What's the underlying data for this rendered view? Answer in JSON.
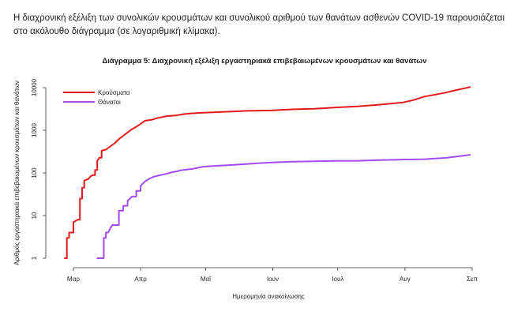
{
  "intro_text": "Η διαχρονική εξέλιξη των συνολικών κρουσμάτων και συνολικού αριθμού των θανάτων ασθενών COVID-19 παρουσιάζεται στο ακόλουθο διάγραμμα (σε λογαριθμική κλίμακα).",
  "chart_data": {
    "type": "line",
    "title": "Διάγραμμα 5: Διαχρονική εξέλιξη εργαστηριακά επιβεβαιωμένων κρουσμάτων και θανάτων",
    "xlabel": "Ημερομηνία ανακοίνωσης",
    "ylabel": "Αριθμός εργαστηριακά επιβεβαιωμένων κρουσμάτων και θανάτων",
    "y_scale": "log",
    "ylim": [
      1,
      10000
    ],
    "y_ticks": [
      1,
      10,
      100,
      1000,
      10000
    ],
    "y_tick_labels": [
      "1",
      "10",
      "100",
      "1000",
      "10000"
    ],
    "xlim": [
      "2020-02-26",
      "2020-09-01"
    ],
    "x_ticks": [
      "2020-03-01",
      "2020-04-01",
      "2020-05-01",
      "2020-06-01",
      "2020-07-01",
      "2020-08-01",
      "2020-09-01"
    ],
    "x_tick_labels": [
      "Μαρ",
      "Απρ",
      "Μαΐ",
      "Ιουν",
      "Ιουλ",
      "Αυγ",
      "Σεπ"
    ],
    "legend_position": "top-left",
    "grid": false,
    "series": [
      {
        "name": "Κρούσματα",
        "color": "#e31a1c",
        "points": [
          [
            "2020-02-26",
            1
          ],
          [
            "2020-02-27",
            3
          ],
          [
            "2020-02-28",
            4
          ],
          [
            "2020-03-01",
            7
          ],
          [
            "2020-03-03",
            8
          ],
          [
            "2020-03-04",
            25
          ],
          [
            "2020-03-05",
            45
          ],
          [
            "2020-03-06",
            66
          ],
          [
            "2020-03-08",
            73
          ],
          [
            "2020-03-09",
            84
          ],
          [
            "2020-03-10",
            89
          ],
          [
            "2020-03-11",
            117
          ],
          [
            "2020-03-12",
            190
          ],
          [
            "2020-03-13",
            228
          ],
          [
            "2020-03-14",
            331
          ],
          [
            "2020-03-16",
            352
          ],
          [
            "2020-03-18",
            418
          ],
          [
            "2020-03-20",
            495
          ],
          [
            "2020-03-22",
            624
          ],
          [
            "2020-03-24",
            743
          ],
          [
            "2020-03-26",
            892
          ],
          [
            "2020-03-28",
            1061
          ],
          [
            "2020-03-30",
            1212
          ],
          [
            "2020-04-01",
            1415
          ],
          [
            "2020-04-03",
            1673
          ],
          [
            "2020-04-06",
            1755
          ],
          [
            "2020-04-09",
            1955
          ],
          [
            "2020-04-13",
            2145
          ],
          [
            "2020-04-17",
            2224
          ],
          [
            "2020-04-21",
            2401
          ],
          [
            "2020-04-25",
            2506
          ],
          [
            "2020-04-30",
            2591
          ],
          [
            "2020-05-10",
            2710
          ],
          [
            "2020-05-20",
            2850
          ],
          [
            "2020-05-31",
            2917
          ],
          [
            "2020-06-10",
            3089
          ],
          [
            "2020-06-20",
            3203
          ],
          [
            "2020-06-30",
            3432
          ],
          [
            "2020-07-10",
            3622
          ],
          [
            "2020-07-20",
            3983
          ],
          [
            "2020-07-31",
            4477
          ],
          [
            "2020-08-05",
            5123
          ],
          [
            "2020-08-10",
            6177
          ],
          [
            "2020-08-15",
            6858
          ],
          [
            "2020-08-20",
            7684
          ],
          [
            "2020-08-25",
            8819
          ],
          [
            "2020-08-31",
            10317
          ]
        ]
      },
      {
        "name": "Θάνατοι",
        "color": "#a24cf2",
        "points": [
          [
            "2020-03-12",
            1
          ],
          [
            "2020-03-14",
            1
          ],
          [
            "2020-03-15",
            3
          ],
          [
            "2020-03-16",
            4
          ],
          [
            "2020-03-17",
            4
          ],
          [
            "2020-03-18",
            5
          ],
          [
            "2020-03-19",
            6
          ],
          [
            "2020-03-20",
            6
          ],
          [
            "2020-03-22",
            13
          ],
          [
            "2020-03-24",
            17
          ],
          [
            "2020-03-26",
            22
          ],
          [
            "2020-03-28",
            28
          ],
          [
            "2020-03-30",
            38
          ],
          [
            "2020-04-01",
            50
          ],
          [
            "2020-04-03",
            63
          ],
          [
            "2020-04-05",
            73
          ],
          [
            "2020-04-07",
            81
          ],
          [
            "2020-04-09",
            86
          ],
          [
            "2020-04-12",
            93
          ],
          [
            "2020-04-15",
            102
          ],
          [
            "2020-04-20",
            116
          ],
          [
            "2020-04-25",
            125
          ],
          [
            "2020-04-30",
            140
          ],
          [
            "2020-05-05",
            146
          ],
          [
            "2020-05-15",
            156
          ],
          [
            "2020-05-25",
            169
          ],
          [
            "2020-05-31",
            175
          ],
          [
            "2020-06-10",
            183
          ],
          [
            "2020-06-20",
            188
          ],
          [
            "2020-06-30",
            192
          ],
          [
            "2020-07-10",
            193
          ],
          [
            "2020-07-20",
            200
          ],
          [
            "2020-07-31",
            206
          ],
          [
            "2020-08-10",
            210
          ],
          [
            "2020-08-20",
            226
          ],
          [
            "2020-08-31",
            266
          ]
        ]
      }
    ]
  }
}
